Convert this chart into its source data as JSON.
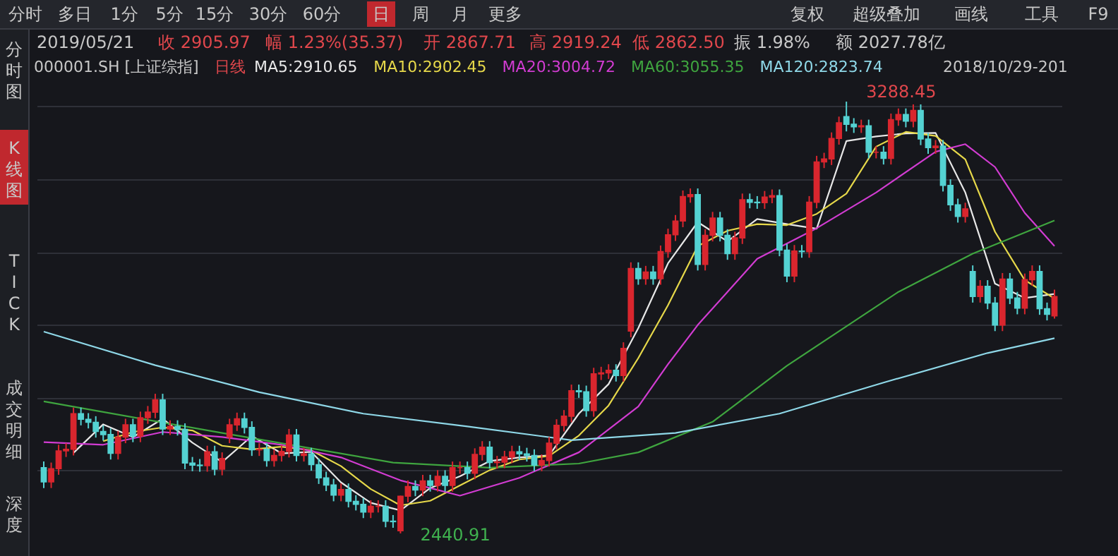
{
  "chart_data": {
    "type": "candlestick",
    "categories": [
      null,
      null,
      null,
      null,
      null,
      null,
      null,
      null,
      null,
      null,
      null,
      null,
      null,
      null,
      null,
      null,
      null,
      null,
      null,
      null,
      null,
      null,
      null,
      null,
      null,
      null,
      null,
      null,
      null,
      null,
      null,
      null,
      null,
      null,
      null,
      null,
      null,
      null,
      null,
      null,
      null,
      null,
      null,
      null,
      null,
      null,
      null,
      null,
      null,
      null,
      null,
      null,
      null,
      null,
      null,
      null,
      null,
      null,
      null,
      null,
      null,
      null,
      null,
      null,
      null,
      null,
      null,
      null,
      null,
      null,
      null,
      null,
      null,
      null,
      null,
      null,
      null,
      null,
      null,
      null,
      null,
      null,
      null,
      null,
      null,
      null,
      null,
      null,
      null,
      null,
      null,
      null,
      null,
      null,
      null,
      null,
      null,
      null,
      null,
      null,
      null,
      null,
      null,
      null,
      null,
      null,
      null,
      null,
      null,
      null,
      null,
      null,
      null,
      null,
      null,
      null,
      null,
      null,
      null,
      null,
      null,
      null,
      null,
      null,
      null,
      null,
      null,
      null,
      null,
      null,
      null,
      null,
      null,
      null,
      null,
      null,
      null
    ],
    "ohlc": [
      [
        2570,
        2582,
        2530,
        2542
      ],
      [
        2542,
        2580,
        2530,
        2568
      ],
      [
        2568,
        2615,
        2556,
        2603
      ],
      [
        2603,
        2618,
        2591,
        2606
      ],
      [
        2606,
        2688,
        2594,
        2676
      ],
      [
        2676,
        2688,
        2653,
        2665
      ],
      [
        2665,
        2677,
        2647,
        2659
      ],
      [
        2659,
        2671,
        2629,
        2641
      ],
      [
        2641,
        2653,
        2623,
        2635
      ],
      [
        2635,
        2647,
        2586,
        2598
      ],
      [
        2598,
        2642,
        2586,
        2630
      ],
      [
        2630,
        2666,
        2618,
        2654
      ],
      [
        2654,
        2666,
        2620,
        2632
      ],
      [
        2632,
        2680,
        2620,
        2668
      ],
      [
        2668,
        2691,
        2656,
        2679
      ],
      [
        2679,
        2715,
        2667,
        2703
      ],
      [
        2703,
        2715,
        2634,
        2646
      ],
      [
        2646,
        2663,
        2634,
        2651
      ],
      [
        2651,
        2663,
        2633,
        2645
      ],
      [
        2645,
        2657,
        2567,
        2579
      ],
      [
        2579,
        2591,
        2563,
        2575
      ],
      [
        2575,
        2587,
        2562,
        2574
      ],
      [
        2574,
        2613,
        2562,
        2601
      ],
      [
        2601,
        2613,
        2555,
        2567
      ],
      [
        2567,
        2600,
        2555,
        2588
      ],
      [
        2630,
        2666,
        2618,
        2654
      ],
      [
        2654,
        2678,
        2642,
        2666
      ],
      [
        2666,
        2678,
        2637,
        2649
      ],
      [
        2649,
        2661,
        2593,
        2605
      ],
      [
        2605,
        2618,
        2593,
        2606
      ],
      [
        2606,
        2618,
        2572,
        2584
      ],
      [
        2584,
        2606,
        2572,
        2594
      ],
      [
        2594,
        2614,
        2582,
        2602
      ],
      [
        2602,
        2646,
        2590,
        2634
      ],
      [
        2634,
        2646,
        2582,
        2594
      ],
      [
        2594,
        2609,
        2582,
        2597
      ],
      [
        2597,
        2609,
        2564,
        2576
      ],
      [
        2576,
        2588,
        2538,
        2550
      ],
      [
        2550,
        2562,
        2524,
        2536
      ],
      [
        2536,
        2548,
        2504,
        2516
      ],
      [
        2516,
        2539,
        2504,
        2527
      ],
      [
        2527,
        2539,
        2492,
        2504
      ],
      [
        2504,
        2516,
        2486,
        2498
      ],
      [
        2498,
        2510,
        2471,
        2483
      ],
      [
        2483,
        2506,
        2471,
        2494
      ],
      [
        2494,
        2506,
        2482,
        2494
      ],
      [
        2494,
        2506,
        2453,
        2465
      ],
      [
        2465,
        2477,
        2452,
        2464
      ],
      [
        2446,
        2515,
        2440.91,
        2514
      ],
      [
        2514,
        2545,
        2502,
        2533
      ],
      [
        2533,
        2545,
        2514,
        2526
      ],
      [
        2526,
        2556,
        2514,
        2544
      ],
      [
        2544,
        2556,
        2523,
        2535
      ],
      [
        2535,
        2565,
        2523,
        2553
      ],
      [
        2553,
        2565,
        2523,
        2535
      ],
      [
        2535,
        2582,
        2523,
        2570
      ],
      [
        2570,
        2582,
        2558,
        2570
      ],
      [
        2570,
        2582,
        2547,
        2559
      ],
      [
        2559,
        2608,
        2547,
        2596
      ],
      [
        2596,
        2622,
        2584,
        2610
      ],
      [
        2610,
        2622,
        2568,
        2580
      ],
      [
        2580,
        2593,
        2568,
        2581
      ],
      [
        2581,
        2603,
        2569,
        2591
      ],
      [
        2591,
        2613,
        2579,
        2601
      ],
      [
        2601,
        2613,
        2585,
        2597
      ],
      [
        2597,
        2609,
        2582,
        2594
      ],
      [
        2594,
        2606,
        2563,
        2575
      ],
      [
        2575,
        2596,
        2563,
        2584
      ],
      [
        2584,
        2630,
        2572,
        2618
      ],
      [
        2618,
        2665,
        2606,
        2653
      ],
      [
        2653,
        2683,
        2641,
        2671
      ],
      [
        2671,
        2733,
        2659,
        2721
      ],
      [
        2721,
        2733,
        2707,
        2719
      ],
      [
        2719,
        2731,
        2670,
        2682
      ],
      [
        2682,
        2766,
        2670,
        2754
      ],
      [
        2754,
        2768,
        2742,
        2756
      ],
      [
        2756,
        2773,
        2744,
        2761
      ],
      [
        2761,
        2773,
        2739,
        2751
      ],
      [
        2751,
        2816,
        2739,
        2804
      ],
      [
        2838,
        2973,
        2826,
        2961
      ],
      [
        2961,
        2973,
        2929,
        2941
      ],
      [
        2941,
        2966,
        2929,
        2954
      ],
      [
        2954,
        2966,
        2929,
        2941
      ],
      [
        2941,
        3006,
        2929,
        2994
      ],
      [
        2994,
        3039,
        2982,
        3027
      ],
      [
        3027,
        3066,
        3015,
        3054
      ],
      [
        3054,
        3114,
        3042,
        3102
      ],
      [
        3102,
        3118,
        3090,
        3106
      ],
      [
        3106,
        3118,
        2957,
        2969
      ],
      [
        2969,
        3038,
        2957,
        3026
      ],
      [
        3026,
        3072,
        3014,
        3060
      ],
      [
        3060,
        3072,
        3014,
        3026
      ],
      [
        3026,
        3038,
        2978,
        2990
      ],
      [
        2990,
        3033,
        2978,
        3021
      ],
      [
        3021,
        3108,
        3009,
        3096
      ],
      [
        3096,
        3108,
        3079,
        3091
      ],
      [
        3091,
        3103,
        3078,
        3090
      ],
      [
        3090,
        3113,
        3078,
        3101
      ],
      [
        3101,
        3116,
        3089,
        3104
      ],
      [
        3104,
        3116,
        2985,
        2997
      ],
      [
        2997,
        3009,
        2934,
        2946
      ],
      [
        2946,
        3007,
        2934,
        2995
      ],
      [
        2995,
        3007,
        2982,
        2994
      ],
      [
        2994,
        3103,
        2982,
        3091
      ],
      [
        3091,
        3182,
        3079,
        3170
      ],
      [
        3170,
        3188,
        3158,
        3176
      ],
      [
        3176,
        3228,
        3164,
        3216
      ],
      [
        3216,
        3259,
        3204,
        3247
      ],
      [
        3259,
        3288.45,
        3230,
        3244
      ],
      [
        3244,
        3256,
        3227,
        3239
      ],
      [
        3239,
        3253,
        3227,
        3241
      ],
      [
        3241,
        3253,
        3177,
        3189
      ],
      [
        3189,
        3201,
        3177,
        3189
      ],
      [
        3189,
        3201,
        3165,
        3177
      ],
      [
        3177,
        3265,
        3165,
        3253
      ],
      [
        3253,
        3275,
        3241,
        3263
      ],
      [
        3263,
        3275,
        3238,
        3250
      ],
      [
        3250,
        3283,
        3238,
        3271
      ],
      [
        3271,
        3283,
        3203,
        3215
      ],
      [
        3215,
        3227,
        3186,
        3198
      ],
      [
        3198,
        3213,
        3186,
        3201
      ],
      [
        3201,
        3213,
        3112,
        3124
      ],
      [
        3124,
        3136,
        3074,
        3086
      ],
      [
        3086,
        3098,
        3051,
        3063
      ],
      [
        3063,
        3090,
        3051,
        3078
      ],
      [
        2955,
        2967,
        2894,
        2906
      ],
      [
        2906,
        2938,
        2894,
        2926
      ],
      [
        2926,
        2938,
        2881,
        2893
      ],
      [
        2893,
        2905,
        2838,
        2850
      ],
      [
        2850,
        2952,
        2838,
        2940
      ],
      [
        2940,
        2952,
        2891,
        2903
      ],
      [
        2903,
        2915,
        2871,
        2883
      ],
      [
        2883,
        2951,
        2871,
        2939
      ],
      [
        2939,
        2967,
        2927,
        2955
      ],
      [
        2955,
        2967,
        2870,
        2882
      ],
      [
        2882,
        2894,
        2859,
        2871
      ],
      [
        2867.71,
        2919.24,
        2862.5,
        2905.97
      ]
    ],
    "colors": [
      "#54d2d2",
      "#d9262e",
      "#d9262e",
      "#d9262e",
      "#d9262e",
      "#54d2d2",
      "#54d2d2",
      "#54d2d2",
      "#54d2d2",
      "#54d2d2",
      "#d9262e",
      "#d9262e",
      "#54d2d2",
      "#d9262e",
      "#d9262e",
      "#d9262e",
      "#54d2d2",
      "#d9262e",
      "#54d2d2",
      "#54d2d2",
      "#54d2d2",
      "#54d2d2",
      "#d9262e",
      "#54d2d2",
      "#d9262e",
      "#d9262e",
      "#d9262e",
      "#54d2d2",
      "#54d2d2",
      "#d9262e",
      "#54d2d2",
      "#d9262e",
      "#d9262e",
      "#d9262e",
      "#54d2d2",
      "#d9262e",
      "#54d2d2",
      "#54d2d2",
      "#54d2d2",
      "#54d2d2",
      "#d9262e",
      "#54d2d2",
      "#54d2d2",
      "#54d2d2",
      "#d9262e",
      "#d9262e",
      "#54d2d2",
      "#54d2d2",
      "#d9262e",
      "#d9262e",
      "#54d2d2",
      "#d9262e",
      "#54d2d2",
      "#d9262e",
      "#54d2d2",
      "#d9262e",
      "#d9262e",
      "#54d2d2",
      "#d9262e",
      "#d9262e",
      "#54d2d2",
      "#d9262e",
      "#d9262e",
      "#d9262e",
      "#54d2d2",
      "#54d2d2",
      "#54d2d2",
      "#d9262e",
      "#d9262e",
      "#d9262e",
      "#d9262e",
      "#d9262e",
      "#54d2d2",
      "#54d2d2",
      "#d9262e",
      "#d9262e",
      "#d9262e",
      "#54d2d2",
      "#d9262e",
      "#d9262e",
      "#54d2d2",
      "#d9262e",
      "#54d2d2",
      "#d9262e",
      "#d9262e",
      "#d9262e",
      "#d9262e",
      "#d9262e",
      "#54d2d2",
      "#d9262e",
      "#d9262e",
      "#54d2d2",
      "#54d2d2",
      "#d9262e",
      "#d9262e",
      "#54d2d2",
      "#54d2d2",
      "#d9262e",
      "#d9262e",
      "#54d2d2",
      "#54d2d2",
      "#d9262e",
      "#54d2d2",
      "#d9262e",
      "#d9262e",
      "#d9262e",
      "#d9262e",
      "#d9262e",
      "#54d2d2",
      "#54d2d2",
      "#d9262e",
      "#54d2d2",
      "#d9262e",
      "#54d2d2",
      "#d9262e",
      "#d9262e",
      "#54d2d2",
      "#d9262e",
      "#54d2d2",
      "#54d2d2",
      "#d9262e",
      "#54d2d2",
      "#54d2d2",
      "#54d2d2",
      "#d9262e",
      "#54d2d2",
      "#d9262e",
      "#54d2d2",
      "#54d2d2",
      "#d9262e",
      "#54d2d2",
      "#54d2d2",
      "#d9262e",
      "#d9262e",
      "#54d2d2",
      "#54d2d2",
      "#d9262e"
    ],
    "series": [
      {
        "name": "MA5:2910.65",
        "type": "line",
        "color": "#e8e8e8",
        "values": [
          null,
          null,
          null,
          null,
          2599,
          null,
          null,
          null,
          2655,
          null,
          null,
          null,
          2630,
          null,
          null,
          null,
          2666,
          null,
          null,
          null,
          2619,
          null,
          null,
          null,
          2581,
          null,
          null,
          null,
          2632,
          null,
          null,
          null,
          2598,
          null,
          null,
          null,
          2601,
          null,
          null,
          null,
          2541,
          null,
          null,
          null,
          2501,
          null,
          null,
          null,
          2486,
          null,
          null,
          null,
          2530,
          null,
          null,
          null,
          2553,
          null,
          null,
          null,
          2583,
          null,
          null,
          null,
          2590,
          null,
          null,
          null,
          2594,
          null,
          null,
          null,
          2676,
          null,
          null,
          null,
          2734,
          null,
          null,
          null,
          2844,
          null,
          null,
          null,
          2971,
          null,
          null,
          null,
          3052,
          null,
          null,
          null,
          3014,
          null,
          null,
          null,
          3058,
          null,
          null,
          null,
          3048,
          null,
          null,
          null,
          3039,
          null,
          null,
          null,
          3211,
          null,
          null,
          null,
          3220,
          null,
          null,
          null,
          3226,
          null,
          null,
          null,
          3227,
          null,
          null,
          null,
          3110,
          null,
          null,
          null,
          2931,
          null,
          null,
          null,
          2903,
          null,
          null,
          null,
          2911
        ]
      },
      {
        "name": "MA10:2902.45",
        "type": "line",
        "color": "#e6d84a",
        "values": [
          null,
          null,
          null,
          null,
          null,
          null,
          null,
          null,
          2622,
          null,
          null,
          null,
          2640,
          null,
          null,
          null,
          2649,
          null,
          null,
          null,
          2643,
          null,
          null,
          null,
          2613,
          null,
          null,
          null,
          2606,
          null,
          null,
          null,
          2611,
          null,
          null,
          null,
          2604,
          null,
          null,
          null,
          2573,
          null,
          null,
          null,
          2528,
          null,
          null,
          null,
          2496,
          null,
          null,
          null,
          2505,
          null,
          null,
          null,
          2535,
          null,
          null,
          null,
          2565,
          null,
          null,
          null,
          2586,
          null,
          null,
          null,
          2593,
          null,
          null,
          null,
          2633,
          null,
          null,
          null,
          2692,
          null,
          null,
          null,
          2785,
          null,
          null,
          null,
          2889,
          null,
          null,
          null,
          3005,
          null,
          null,
          null,
          3035,
          null,
          null,
          null,
          3048,
          null,
          null,
          null,
          3046,
          null,
          null,
          null,
          3068,
          null,
          null,
          null,
          3108,
          null,
          null,
          null,
          3200,
          null,
          null,
          null,
          3229,
          null,
          null,
          null,
          3221,
          null,
          null,
          null,
          3175,
          null,
          null,
          null,
          3033,
          null,
          null,
          null,
          2938,
          null,
          null,
          null,
          2902
        ]
      },
      {
        "name": "MA20:3004.72",
        "type": "line",
        "color": "#d23cd2",
        "values": [
          2620,
          null,
          null,
          null,
          null,
          null,
          null,
          null,
          2615,
          null,
          null,
          null,
          null,
          null,
          null,
          null,
          2640,
          null,
          null,
          null,
          null,
          null,
          null,
          null,
          2630,
          null,
          null,
          null,
          null,
          null,
          null,
          null,
          2615,
          null,
          null,
          null,
          null,
          null,
          null,
          null,
          2590,
          null,
          null,
          null,
          null,
          null,
          null,
          null,
          2545,
          null,
          null,
          null,
          null,
          null,
          null,
          null,
          2515,
          null,
          null,
          null,
          null,
          null,
          null,
          null,
          2550,
          null,
          null,
          null,
          null,
          null,
          null,
          null,
          2600,
          null,
          null,
          null,
          null,
          null,
          null,
          null,
          2690,
          null,
          null,
          null,
          2773,
          null,
          null,
          null,
          2850,
          null,
          null,
          null,
          null,
          null,
          null,
          null,
          2980,
          null,
          null,
          null,
          null,
          null,
          null,
          null,
          3040,
          null,
          null,
          null,
          null,
          null,
          null,
          null,
          3110,
          null,
          null,
          null,
          null,
          null,
          null,
          null,
          3190,
          null,
          null,
          null,
          3205,
          null,
          null,
          null,
          3160,
          null,
          null,
          null,
          3070,
          null,
          null,
          null,
          3005
        ]
      },
      {
        "name": "MA60:3055.35",
        "type": "line",
        "color": "#3fa53f",
        "values": [
          2700,
          null,
          null,
          null,
          null,
          null,
          null,
          null,
          null,
          null,
          null,
          null,
          null,
          null,
          null,
          null,
          null,
          null,
          null,
          null,
          null,
          null,
          null,
          null,
          2638,
          null,
          null,
          null,
          null,
          null,
          null,
          null,
          null,
          null,
          null,
          null,
          null,
          null,
          null,
          null,
          null,
          null,
          null,
          null,
          null,
          null,
          null,
          2580,
          null,
          null,
          null,
          null,
          null,
          null,
          null,
          null,
          null,
          null,
          null,
          null,
          2570,
          null,
          null,
          null,
          null,
          null,
          null,
          null,
          null,
          null,
          null,
          null,
          2578,
          null,
          null,
          null,
          null,
          null,
          null,
          null,
          2600,
          null,
          null,
          null,
          null,
          null,
          null,
          null,
          null,
          null,
          2660,
          null,
          null,
          null,
          null,
          null,
          null,
          null,
          null,
          null,
          2770,
          null,
          null,
          null,
          null,
          null,
          null,
          null,
          null,
          null,
          null,
          null,
          null,
          null,
          null,
          2915,
          null,
          null,
          null,
          null,
          null,
          null,
          null,
          null,
          null,
          2990,
          null,
          null,
          null,
          null,
          null,
          null,
          null,
          null,
          null,
          null,
          3055
        ]
      },
      {
        "name": "MA120:2823.74",
        "type": "line",
        "color": "#8fd8e8",
        "values": [
          2837,
          null,
          null,
          null,
          null,
          null,
          null,
          null,
          null,
          null,
          null,
          null,
          null,
          null,
          null,
          2771,
          null,
          null,
          null,
          null,
          null,
          null,
          null,
          null,
          null,
          null,
          null,
          null,
          null,
          2718,
          null,
          null,
          null,
          null,
          null,
          null,
          null,
          null,
          null,
          null,
          null,
          null,
          null,
          2676,
          null,
          null,
          null,
          null,
          null,
          null,
          null,
          null,
          null,
          null,
          null,
          null,
          null,
          2651,
          null,
          null,
          null,
          null,
          null,
          null,
          null,
          null,
          null,
          null,
          null,
          null,
          null,
          2624,
          null,
          null,
          null,
          null,
          null,
          null,
          null,
          null,
          null,
          null,
          null,
          null,
          null,
          2638,
          null,
          null,
          null,
          null,
          null,
          null,
          null,
          null,
          null,
          null,
          null,
          null,
          null,
          2676,
          null,
          null,
          null,
          null,
          null,
          null,
          null,
          null,
          null,
          null,
          null,
          null,
          null,
          2737,
          null,
          null,
          null,
          null,
          null,
          null,
          null,
          null,
          null,
          null,
          null,
          null,
          null,
          2795,
          null,
          null,
          null,
          null,
          null,
          null,
          null,
          null,
          2824
        ]
      }
    ],
    "yticks": [
      {
        "value": 2566,
        "label": null
      },
      {
        "value": 2707,
        "label": null
      },
      {
        "value": 2851,
        "label": null
      },
      {
        "value": 2992,
        "label": null
      },
      {
        "value": 3136,
        "label": null
      },
      {
        "value": 3280,
        "label": null
      }
    ],
    "grid": "y",
    "legend": "top",
    "annotations": [
      "分时",
      "多日",
      "1分",
      "5分",
      "15分",
      "30分",
      "60分",
      "日",
      "周",
      "月",
      "更多",
      "复权",
      "超级叠加",
      "画线",
      "工具",
      "F9",
      "2019/05/21",
      "收 2905.97",
      "幅 1.23%(35.37)",
      "开 2867.71",
      "高 2919.24",
      "低 2862.50",
      "振 1.98%",
      "额 2027.78亿",
      "000001.SH [上证综指]",
      "日线",
      "2018/10/29-201",
      "分时图",
      "K线图",
      "TICK",
      "成交明细",
      "深度",
      "3288.45",
      "2440.91"
    ]
  }
}
